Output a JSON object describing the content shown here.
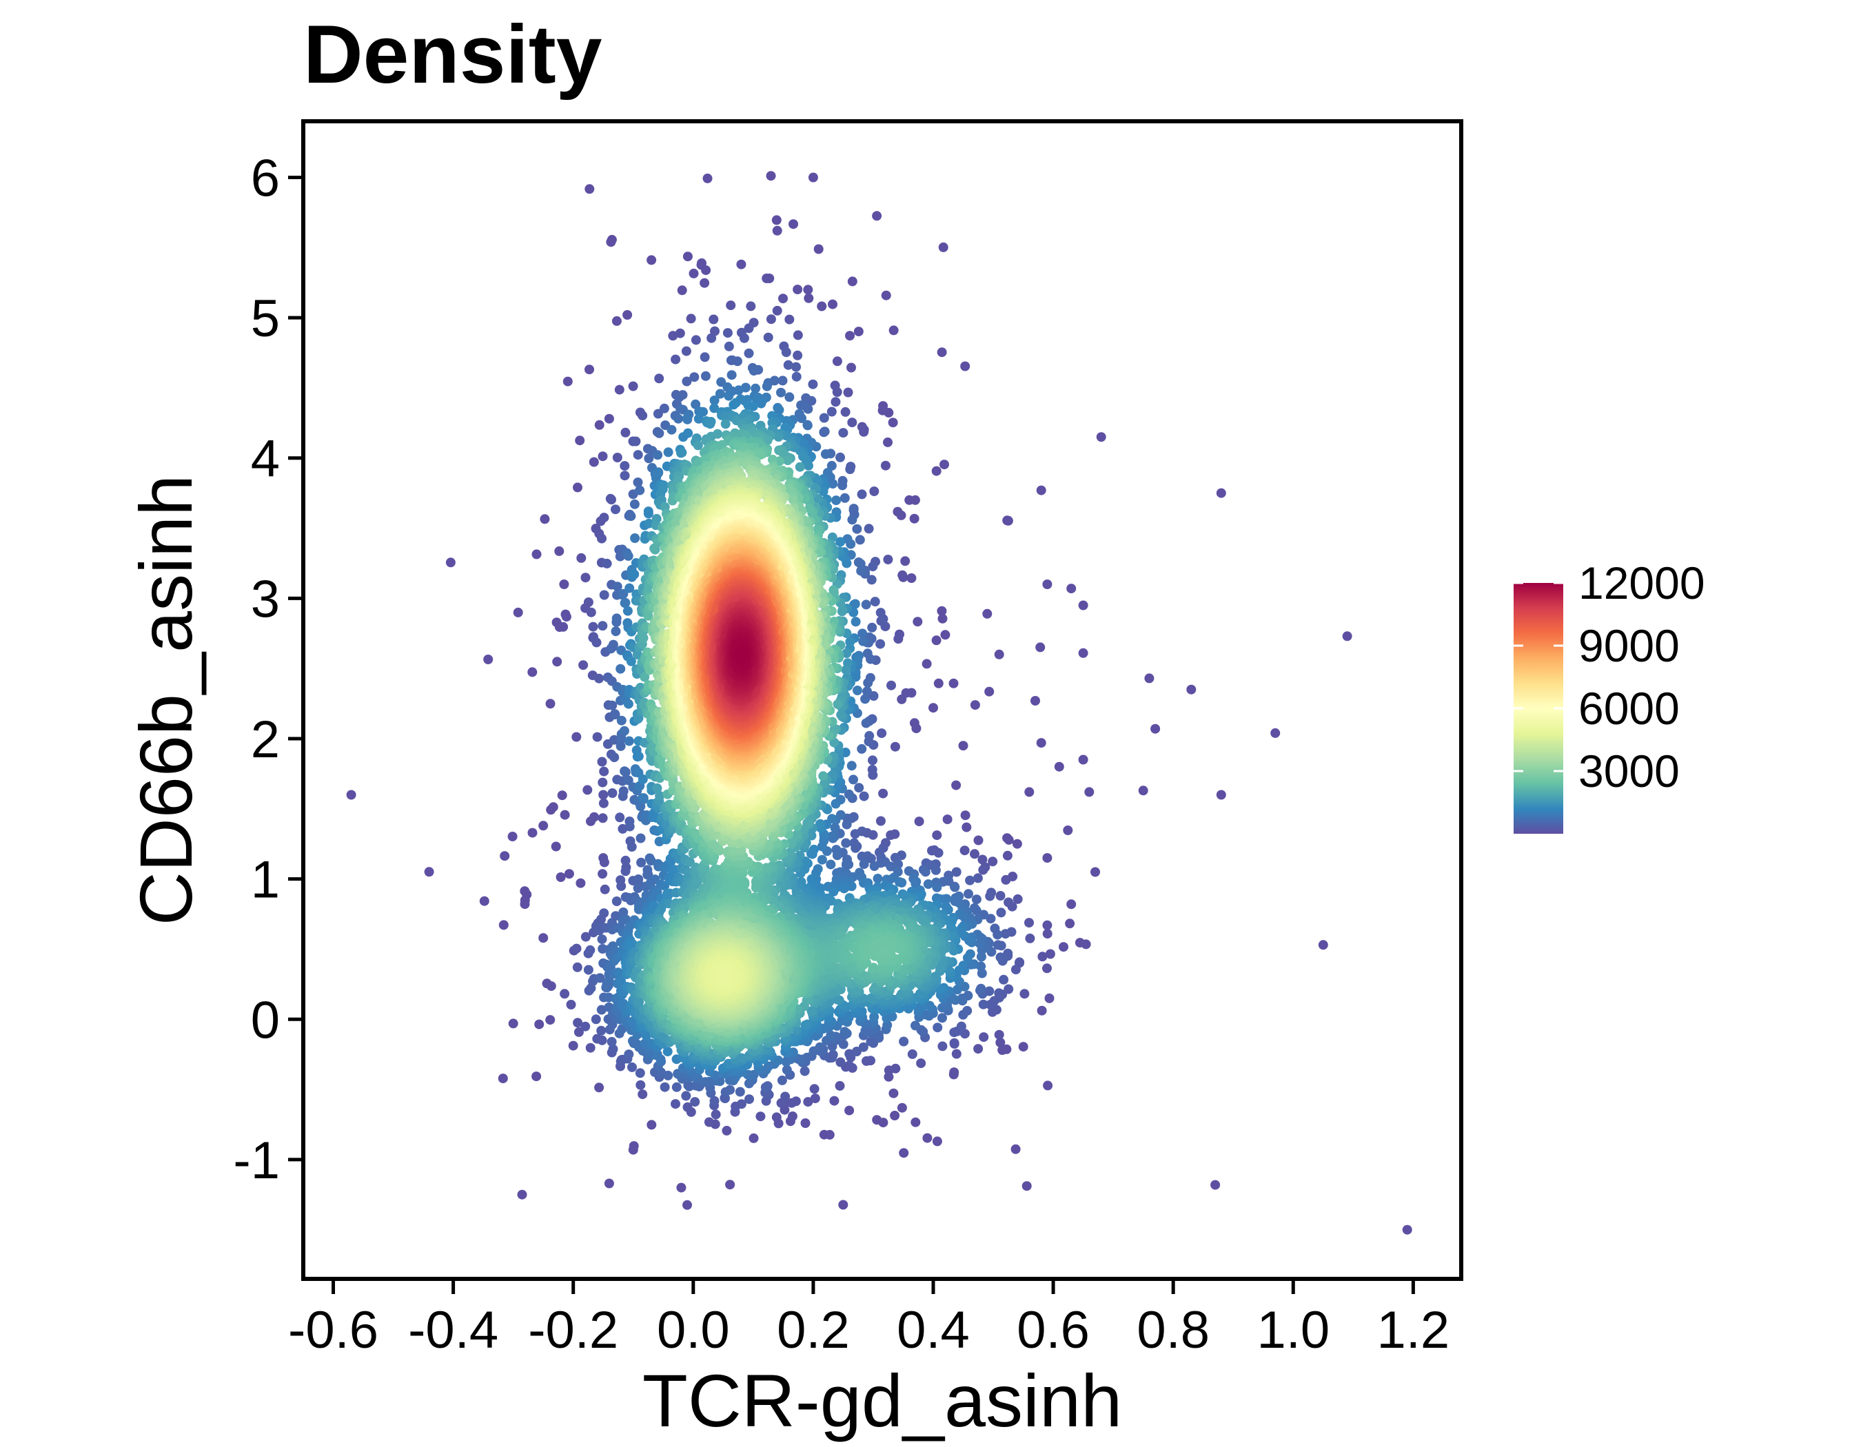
{
  "chart_data": {
    "type": "scatter",
    "title": "Density",
    "xlabel": "TCR-gd_asinh",
    "ylabel": "CD66b_asinh",
    "xlim": [
      -0.65,
      1.28
    ],
    "ylim": [
      -1.85,
      6.4
    ],
    "x_ticks": [
      -0.6,
      -0.4,
      -0.2,
      0.0,
      0.2,
      0.4,
      0.6,
      0.8,
      1.0,
      1.2
    ],
    "x_tick_labels": [
      "-0.6",
      "-0.4",
      "-0.2",
      "0.0",
      "0.2",
      "0.4",
      "0.6",
      "0.8",
      "1.0",
      "1.2"
    ],
    "y_ticks": [
      -1,
      0,
      1,
      2,
      3,
      4,
      5,
      6
    ],
    "y_tick_labels": [
      "-1",
      "0",
      "1",
      "2",
      "3",
      "4",
      "5",
      "6"
    ],
    "grid": false,
    "color_scale": {
      "label": "",
      "range": [
        0,
        12000
      ],
      "ticks": [
        3000,
        6000,
        9000,
        12000
      ],
      "tick_labels": [
        "3000",
        "6000",
        "9000",
        "12000"
      ],
      "palette": "Spectral",
      "colors": [
        "#5E4FA2",
        "#3288BD",
        "#66C2A5",
        "#ABDDA4",
        "#E6F598",
        "#FFFFBF",
        "#FEE08B",
        "#FDAE61",
        "#F46D43",
        "#D53E4F",
        "#9E0142"
      ],
      "legend_position": "right"
    },
    "density_clusters": [
      {
        "center": [
          0.08,
          2.6
        ],
        "spread": [
          0.075,
          0.72
        ],
        "peak_density": 12000
      },
      {
        "center": [
          0.05,
          0.3
        ],
        "spread": [
          0.085,
          0.33
        ],
        "peak_density": 3600
      },
      {
        "center": [
          0.32,
          0.5
        ],
        "spread": [
          0.09,
          0.3
        ],
        "peak_density": 1500
      }
    ],
    "outlier_points": [
      {
        "x": 0.2,
        "y": 6.0
      },
      {
        "x": 0.14,
        "y": 5.62
      },
      {
        "x": 0.08,
        "y": 5.38
      },
      {
        "x": -0.57,
        "y": 1.6
      },
      {
        "x": -0.3,
        "y": -0.03
      },
      {
        "x": -0.25,
        "y": 1.38
      },
      {
        "x": -0.25,
        "y": 0.58
      },
      {
        "x": -0.14,
        "y": -1.17
      },
      {
        "x": -0.02,
        "y": -1.2
      },
      {
        "x": -0.1,
        "y": -0.93
      },
      {
        "x": 0.26,
        "y": -0.65
      },
      {
        "x": 0.26,
        "y": -0.33
      },
      {
        "x": 0.68,
        "y": 4.15
      },
      {
        "x": 0.88,
        "y": 3.75
      },
      {
        "x": 0.58,
        "y": 3.77
      },
      {
        "x": 1.09,
        "y": 2.73
      },
      {
        "x": 0.97,
        "y": 2.04
      },
      {
        "x": 0.83,
        "y": 2.35
      },
      {
        "x": 0.76,
        "y": 2.43
      },
      {
        "x": 0.77,
        "y": 2.07
      },
      {
        "x": 0.88,
        "y": 1.6
      },
      {
        "x": 0.75,
        "y": 1.63
      },
      {
        "x": 1.05,
        "y": 0.53
      },
      {
        "x": 0.87,
        "y": -1.18
      },
      {
        "x": 1.19,
        "y": -1.5
      },
      {
        "x": 0.59,
        "y": 3.1
      },
      {
        "x": 0.63,
        "y": 3.07
      },
      {
        "x": 0.65,
        "y": 2.95
      },
      {
        "x": 0.65,
        "y": 2.61
      },
      {
        "x": 0.57,
        "y": 2.27
      },
      {
        "x": 0.49,
        "y": 2.89
      },
      {
        "x": 0.51,
        "y": 2.6
      },
      {
        "x": 0.47,
        "y": 2.24
      },
      {
        "x": 0.56,
        "y": 1.62
      },
      {
        "x": 0.61,
        "y": 1.8
      },
      {
        "x": 0.65,
        "y": 1.85
      },
      {
        "x": 0.66,
        "y": 1.62
      },
      {
        "x": 0.58,
        "y": 1.97
      },
      {
        "x": 0.67,
        "y": 1.05
      },
      {
        "x": 0.59,
        "y": 1.15
      },
      {
        "x": 0.54,
        "y": 1.25
      },
      {
        "x": 0.63,
        "y": 0.82
      },
      {
        "x": 0.59,
        "y": 0.67
      },
      {
        "x": 0.51,
        "y": -0.11
      },
      {
        "x": -0.15,
        "y": 1.6
      },
      {
        "x": -0.15,
        "y": 1.15
      },
      {
        "x": -0.18,
        "y": 2.93
      },
      {
        "x": -0.17,
        "y": 2.9
      },
      {
        "x": -0.14,
        "y": 4.28
      },
      {
        "x": -0.11,
        "y": 5.02
      },
      {
        "x": 0.14,
        "y": 5.05
      },
      {
        "x": 0.24,
        "y": 4.47
      },
      {
        "x": 0.25,
        "y": 4.18
      },
      {
        "x": 0.36,
        "y": 3.7
      },
      {
        "x": 0.37,
        "y": 3.7
      },
      {
        "x": 0.4,
        "y": 2.22
      },
      {
        "x": 0.45,
        "y": 1.95
      },
      {
        "x": 0.32,
        "y": 2.8
      },
      {
        "x": 0.35,
        "y": 3.15
      },
      {
        "x": 0.42,
        "y": 2.74
      }
    ]
  }
}
